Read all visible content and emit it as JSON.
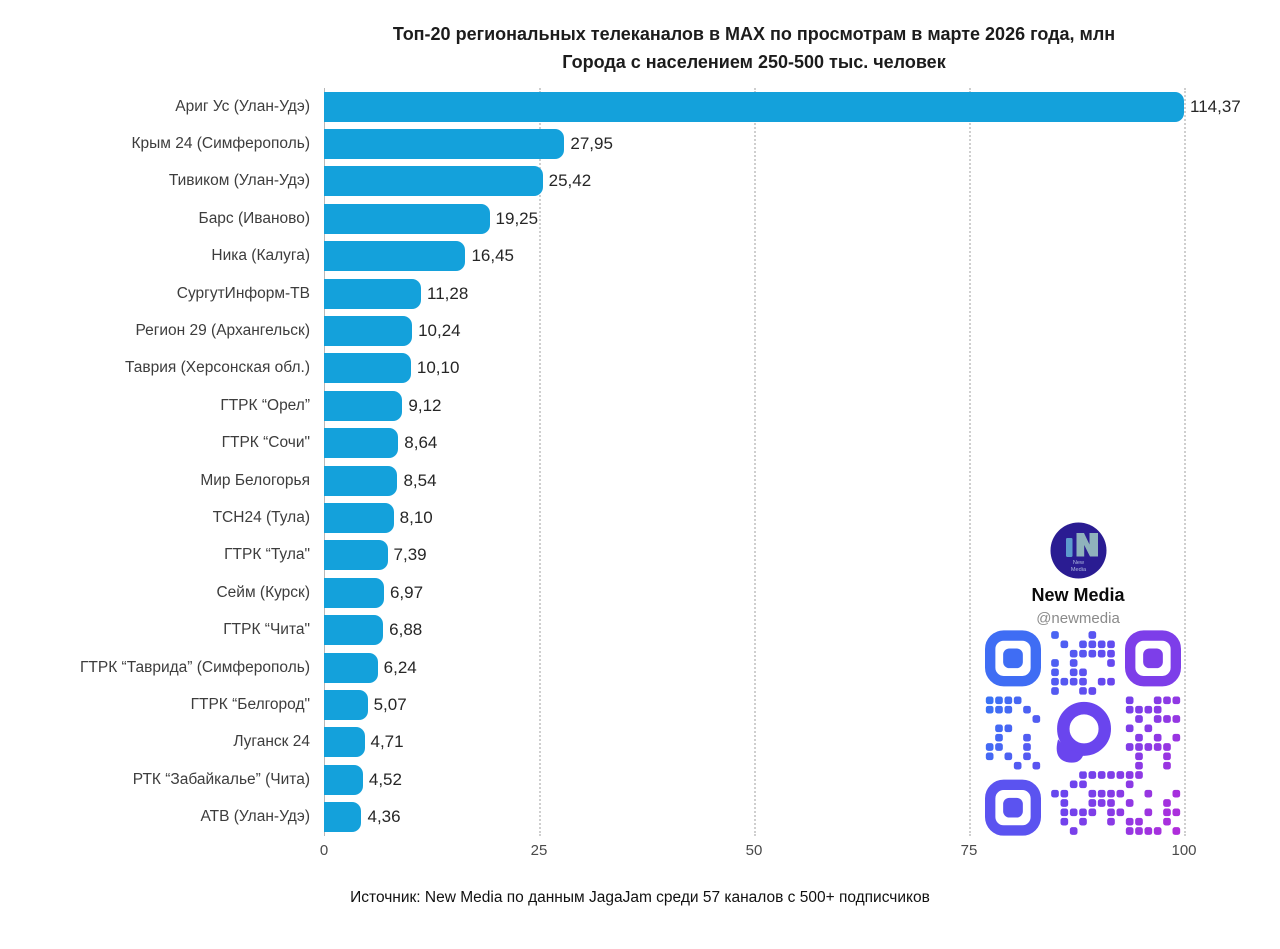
{
  "chart_data": {
    "type": "bar",
    "orientation": "horizontal",
    "title": "Топ-20 региональных телеканалов в MAX по просмотрам в марте 2026 года, млн",
    "subtitle": "Города с населением 250-500 тыс. человек",
    "categories": [
      "Ариг Ус (Улан-Удэ)",
      "Крым 24 (Симферополь)",
      "Тивиком (Улан-Удэ)",
      "Барс (Иваново)",
      "Ника (Калуга)",
      "СургутИнформ-ТВ",
      "Регион 29 (Архангельск)",
      "Таврия (Херсонская обл.)",
      "ГТРК “Орел”",
      "ГТРК “Сочи\"",
      "Мир Белогорья",
      "ТСН24 (Тула)",
      "ГТРК “Тула\"",
      "Сейм (Курск)",
      "ГТРК “Чита\"",
      "ГТРК “Таврида” (Симферополь)",
      "ГТРК “Белгород\"",
      "Луганск 24",
      "РТК “Забайкалье” (Чита)",
      "АТВ (Улан-Удэ)"
    ],
    "values": [
      114.37,
      27.95,
      25.42,
      19.25,
      16.45,
      11.28,
      10.24,
      10.1,
      9.12,
      8.64,
      8.54,
      8.1,
      7.39,
      6.97,
      6.88,
      6.24,
      5.07,
      4.71,
      4.52,
      4.36
    ],
    "value_labels": [
      "114,37",
      "27,95",
      "25,42",
      "19,25",
      "16,45",
      "11,28",
      "10,24",
      "10,10",
      "9,12",
      "8,64",
      "8,54",
      "8,10",
      "7,39",
      "6,97",
      "6,88",
      "6,24",
      "5,07",
      "4,71",
      "4,52",
      "4,36"
    ],
    "xlabel": "",
    "ylabel": "",
    "xlim": [
      0,
      100
    ],
    "x_ticks": [
      0,
      25,
      50,
      75,
      100
    ],
    "grid": "dotted-vertical",
    "legend": "none",
    "bar_color": "#14A1DB"
  },
  "branding": {
    "name": "New Media",
    "handle": "@newmedia",
    "avatar_line1": "New",
    "avatar_line2": "Media",
    "avatar_bg": "#2a1c92",
    "avatar_accent1": "#5d9bcd",
    "avatar_accent2": "#8fb2bc",
    "qr_color_start": "#2e7df7",
    "qr_color_mid": "#6a45ee",
    "qr_color_end": "#b62bd9"
  },
  "footer": {
    "source": "Источник: New Media по данным JagaJam среди 57 каналов с 500+ подписчиков"
  }
}
